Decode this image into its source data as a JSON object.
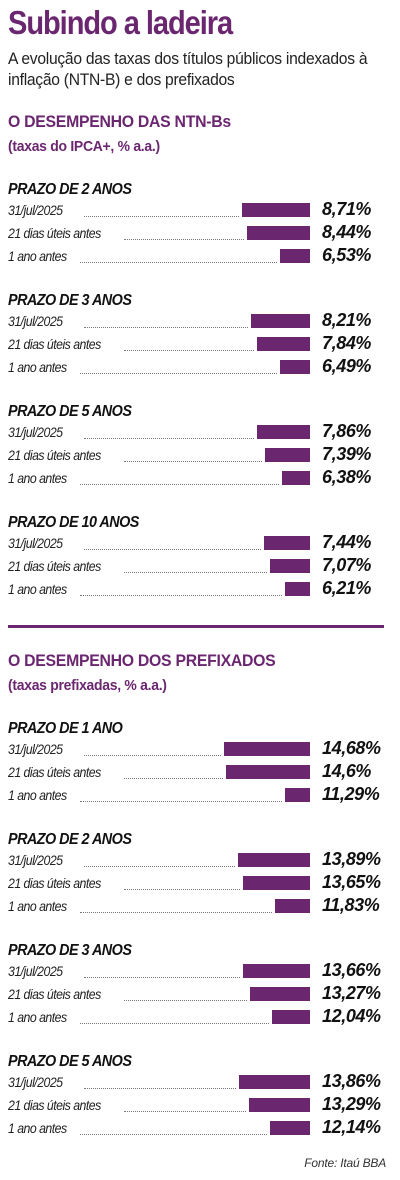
{
  "title": "Subindo a ladeira",
  "subtitle": "A evolução das taxas dos títulos públicos indexados à inflação (NTN-B) e dos prefixados",
  "source": "Fonte: Itaú BBA",
  "colors": {
    "accent": "#6b2670",
    "bar": "#6b2670"
  },
  "chart_data": [
    {
      "type": "bar",
      "orientation": "horizontal",
      "title": "O DESEMPENHO DAS NTN-Bs",
      "unit": "(taxas do IPCA+, % a.a.)",
      "categories": [
        "31/jul/2025",
        "21 dias úteis antes",
        "1 ano antes"
      ],
      "groups": [
        {
          "name": "PRAZO DE 2 ANOS",
          "values": [
            8.71,
            8.44,
            6.53
          ],
          "labels": [
            "8,71%",
            "8,44%",
            "6,53%"
          ]
        },
        {
          "name": "PRAZO DE 3 ANOS",
          "values": [
            8.21,
            7.84,
            6.49
          ],
          "labels": [
            "8,21%",
            "7,84%",
            "6,49%"
          ]
        },
        {
          "name": "PRAZO DE 5 ANOS",
          "values": [
            7.86,
            7.39,
            6.38
          ],
          "labels": [
            "7,86%",
            "7,39%",
            "6,38%"
          ]
        },
        {
          "name": "PRAZO DE 10 ANOS",
          "values": [
            7.44,
            7.07,
            6.21
          ],
          "labels": [
            "7,44%",
            "7,07%",
            "6,21%"
          ]
        }
      ]
    },
    {
      "type": "bar",
      "orientation": "horizontal",
      "title": "O DESEMPENHO DOS PREFIXADOS",
      "unit": "(taxas prefixadas, % a.a.)",
      "categories": [
        "31/jul/2025",
        "21 dias úteis antes",
        "1 ano antes"
      ],
      "groups": [
        {
          "name": "PRAZO DE 1 ANO",
          "values": [
            14.68,
            14.6,
            11.29
          ],
          "labels": [
            "14,68%",
            "14,6%",
            "11,29%"
          ]
        },
        {
          "name": "PRAZO DE 2 ANOS",
          "values": [
            13.89,
            13.65,
            11.83
          ],
          "labels": [
            "13,89%",
            "13,65%",
            "11,83%"
          ]
        },
        {
          "name": "PRAZO DE 3 ANOS",
          "values": [
            13.66,
            13.27,
            12.04
          ],
          "labels": [
            "13,66%",
            "13,27%",
            "12,04%"
          ]
        },
        {
          "name": "PRAZO DE 5 ANOS",
          "values": [
            13.86,
            13.29,
            12.14
          ],
          "labels": [
            "13,86%",
            "13,29%",
            "12,14%"
          ]
        }
      ]
    }
  ]
}
